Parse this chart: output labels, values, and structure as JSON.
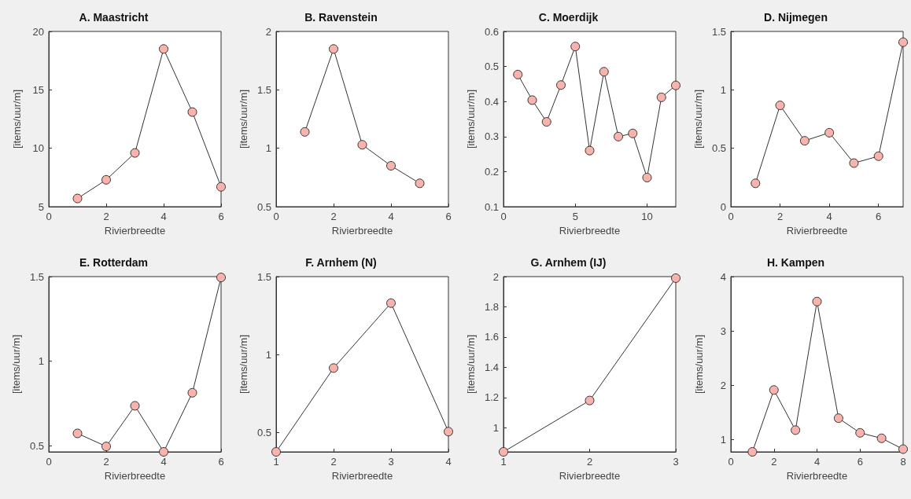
{
  "chart_data": [
    {
      "type": "line",
      "title": "A. Maastricht",
      "xlabel": "Rivierbreedte",
      "ylabel": "[items/uur/m]",
      "x": [
        1,
        2,
        3,
        4,
        5,
        6
      ],
      "values": [
        5.7,
        7.3,
        9.6,
        18.5,
        13.1,
        6.7
      ],
      "color": "#f9b3ad",
      "xlim": [
        0,
        6
      ],
      "xticks": [
        0,
        2,
        4,
        6
      ],
      "ylim": [
        5,
        20
      ],
      "yticks": [
        5,
        10,
        15,
        20
      ],
      "marker": "circle",
      "grid": false
    },
    {
      "type": "line",
      "title": "B. Ravenstein",
      "xlabel": "Rivierbreedte",
      "ylabel": "[items/uur/m]",
      "x": [
        1,
        2,
        3,
        4,
        5
      ],
      "values": [
        1.14,
        1.85,
        1.03,
        0.85,
        0.7
      ],
      "color": "#f9b3ad",
      "xlim": [
        0,
        6
      ],
      "xticks": [
        0,
        2,
        4,
        6
      ],
      "ylim": [
        0.5,
        2
      ],
      "yticks": [
        0.5,
        1,
        1.5,
        2
      ],
      "marker": "circle",
      "grid": false
    },
    {
      "type": "line",
      "title": "C. Moerdijk",
      "xlabel": "Rivierbreedte",
      "ylabel": "[items/uur/m]",
      "x": [
        1,
        2,
        3,
        4,
        5,
        6,
        7,
        8,
        9,
        10,
        11,
        12
      ],
      "values": [
        0.477,
        0.404,
        0.342,
        0.447,
        0.557,
        0.26,
        0.485,
        0.3,
        0.309,
        0.183,
        0.412,
        0.446
      ],
      "color": "#f9b3ad",
      "xlim": [
        0,
        12
      ],
      "xticks": [
        0,
        5,
        10
      ],
      "ylim": [
        0.1,
        0.6
      ],
      "yticks": [
        0.1,
        0.2,
        0.3,
        0.4,
        0.5,
        0.6
      ],
      "marker": "circle",
      "grid": false
    },
    {
      "type": "line",
      "title": "D. Nijmegen",
      "xlabel": "Rivierbreedte",
      "ylabel": "[items/uur/m]",
      "x": [
        1,
        2,
        3,
        4,
        5,
        6,
        7
      ],
      "values": [
        0.2,
        0.867,
        0.564,
        0.633,
        0.373,
        0.432,
        1.408
      ],
      "color": "#f9b3ad",
      "xlim": [
        0,
        7
      ],
      "xticks": [
        0,
        2,
        4,
        6
      ],
      "ylim": [
        0,
        1.5
      ],
      "yticks": [
        0,
        0.5,
        1,
        1.5
      ],
      "marker": "circle",
      "grid": false
    },
    {
      "type": "line",
      "title": "E. Rotterdam",
      "xlabel": "Rivierbreedte",
      "ylabel": "[items/uur/m]",
      "x": [
        1,
        2,
        3,
        4,
        5,
        6
      ],
      "values": [
        0.574,
        0.497,
        0.737,
        0.465,
        0.814,
        1.495
      ],
      "color": "#f9b3ad",
      "xlim": [
        0,
        6
      ],
      "xticks": [
        0,
        2,
        4,
        6
      ],
      "ylim": [
        0.465,
        1.5
      ],
      "yticks": [
        0.5,
        1,
        1.5
      ],
      "marker": "circle",
      "grid": false
    },
    {
      "type": "line",
      "title": "F. Arnhem (N)",
      "xlabel": "Rivierbreedte",
      "ylabel": "[items/uur/m]",
      "x": [
        1,
        2,
        3,
        4
      ],
      "values": [
        0.375,
        0.913,
        1.33,
        0.505
      ],
      "color": "#f9b3ad",
      "xlim": [
        1,
        4
      ],
      "xticks": [
        1,
        2,
        3,
        4
      ],
      "ylim": [
        0.375,
        1.5
      ],
      "yticks": [
        0.5,
        1,
        1.5
      ],
      "marker": "circle",
      "grid": false
    },
    {
      "type": "line",
      "title": "G. Arnhem (IJ)",
      "xlabel": "Rivierbreedte",
      "ylabel": "[items/uur/m]",
      "x": [
        1,
        2,
        3
      ],
      "values": [
        0.84,
        1.18,
        1.99
      ],
      "color": "#f9b3ad",
      "xlim": [
        1,
        3
      ],
      "xticks": [
        1,
        2,
        3
      ],
      "ylim": [
        0.84,
        2
      ],
      "yticks": [
        1,
        1.2,
        1.4,
        1.6,
        1.8,
        2
      ],
      "marker": "circle",
      "grid": false
    },
    {
      "type": "line",
      "title": "H. Kampen",
      "xlabel": "Rivierbreedte",
      "ylabel": "[items/uur/m]",
      "x": [
        1,
        2,
        3,
        4,
        5,
        6,
        7,
        8
      ],
      "values": [
        0.77,
        1.91,
        1.17,
        3.54,
        1.39,
        1.12,
        1.02,
        0.82
      ],
      "color": "#f9b3ad",
      "xlim": [
        0,
        8
      ],
      "xticks": [
        0,
        2,
        4,
        6,
        8
      ],
      "ylim": [
        0.77,
        4
      ],
      "yticks": [
        1,
        2,
        3,
        4
      ],
      "marker": "circle",
      "grid": false
    }
  ]
}
